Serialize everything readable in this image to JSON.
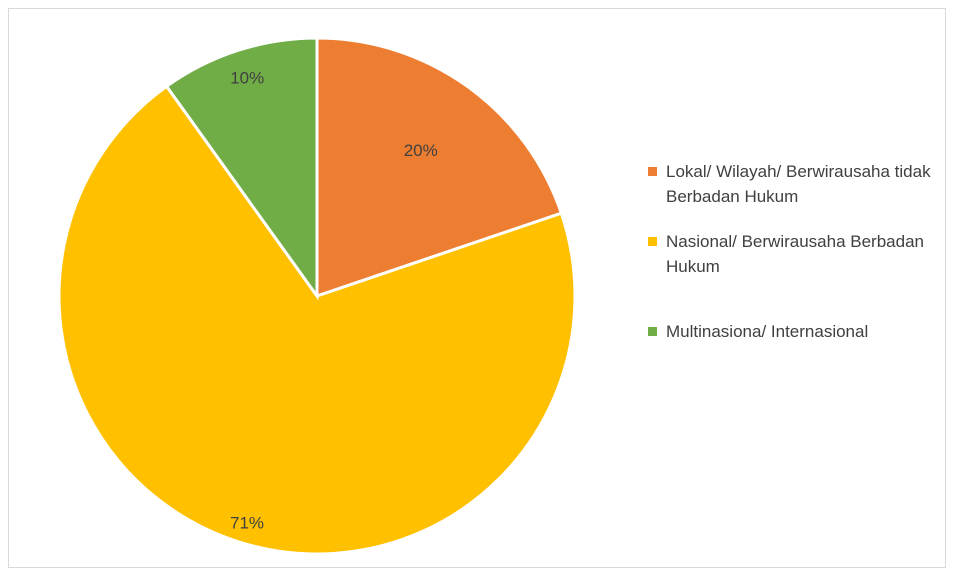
{
  "chart_data": {
    "type": "pie",
    "title": "",
    "start_angle": "12 o'clock, clockwise",
    "legend_position": "right",
    "series": [
      {
        "name": "Lokal/ Wilayah/ Berwirausaha tidak Berbadan Hukum",
        "value": 20,
        "label": "20%",
        "color": "#ED7D31"
      },
      {
        "name": "Nasional/ Berwirausaha Berbadan Hukum",
        "value": 71,
        "label": "71%",
        "color": "#FFC000"
      },
      {
        "name": "Multinasiona/ Internasional",
        "value": 10,
        "label": "10%",
        "color": "#70AD47"
      }
    ]
  }
}
